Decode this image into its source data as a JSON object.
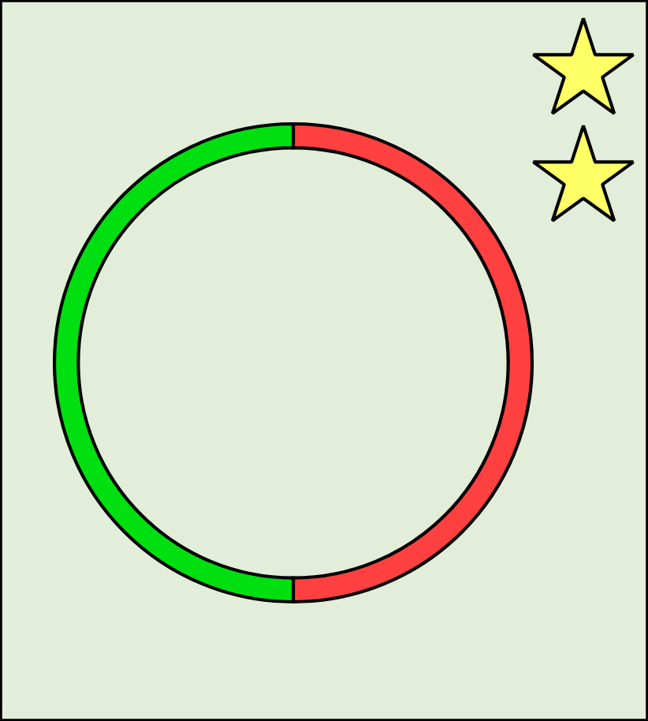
{
  "chart_data": {
    "type": "donut",
    "categories": [
      null,
      null
    ],
    "values": [
      50,
      50
    ],
    "colors": [
      "#ff4040",
      "#00e010"
    ]
  }
}
